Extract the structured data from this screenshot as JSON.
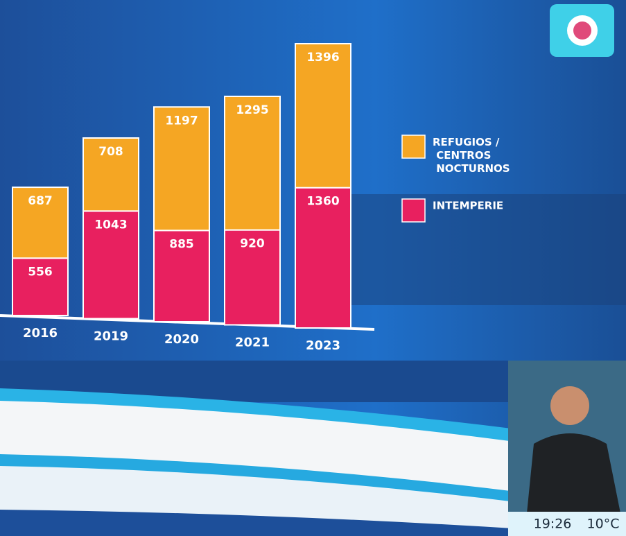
{
  "chart_data": {
    "type": "stacked-bar",
    "categories": [
      "2016",
      "2019",
      "2020",
      "2021",
      "2023"
    ],
    "series": [
      {
        "name": "INTEMPERIE",
        "color": "#e8205f",
        "values": [
          556,
          1043,
          885,
          920,
          1360
        ]
      },
      {
        "name": "REFUGIOS / CENTROS NOCTURNOS",
        "color": "#f5a623",
        "values": [
          687,
          708,
          1197,
          1295,
          1396
        ]
      }
    ],
    "legend": "right"
  },
  "overlay": {
    "time": "19:26",
    "temperature": "10°C"
  }
}
